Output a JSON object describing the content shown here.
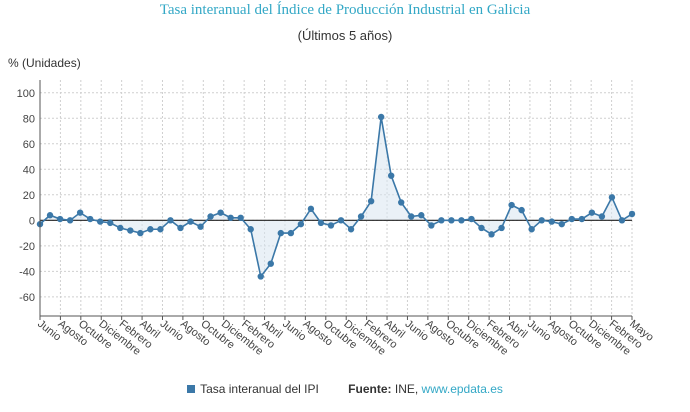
{
  "title": "Tasa interanual del Índice de Producción Industrial en Galicia",
  "subtitle": "(Últimos 5 años)",
  "colors": {
    "series": "#3b78a8",
    "area": "#d9e5f0",
    "title": "#33a8c6",
    "grid": "#cfcfcf"
  },
  "legend": {
    "series_label": "Tasa interanual del IPI",
    "source_label": "Fuente:",
    "source_text": "INE, ",
    "source_link": "www.epdata.es"
  },
  "chart_data": {
    "type": "line",
    "ylabel": "% (Unidades)",
    "ylim": [
      -75,
      110
    ],
    "yticks": [
      -60,
      -40,
      -20,
      0,
      20,
      40,
      60,
      80,
      100
    ],
    "grid": true,
    "legend_position": "bottom",
    "xtick_labels": [
      "Junio",
      "Agosto",
      "Octubre",
      "Diciembre",
      "Febrero",
      "Abril",
      "Junio",
      "Agosto",
      "Octubre",
      "Diciembre",
      "Febrero",
      "Abril",
      "Junio",
      "Agosto",
      "Octubre",
      "Diciembre",
      "Febrero",
      "Abril",
      "Junio",
      "Agosto",
      "Octubre",
      "Diciembre",
      "Febrero",
      "Abril",
      "Junio",
      "Agosto",
      "Octubre",
      "Diciembre",
      "Febrero",
      "Mayo"
    ],
    "series": [
      {
        "name": "Tasa interanual del IPI",
        "values": [
          -3,
          4,
          1,
          0,
          6,
          1,
          -1,
          -2,
          -6,
          -8,
          -10,
          -7,
          -7,
          0,
          -6,
          -1,
          -5,
          3,
          6,
          2,
          2,
          -7,
          -44,
          -34,
          -10,
          -10,
          -3,
          9,
          -2,
          -4,
          0,
          -7,
          3,
          15,
          81,
          35,
          14,
          3,
          4,
          -4,
          0,
          0,
          0,
          1,
          -6,
          -11,
          -6,
          12,
          8,
          -7,
          0,
          -1,
          -3,
          1,
          1,
          6,
          3,
          18,
          0,
          5
        ]
      }
    ]
  }
}
